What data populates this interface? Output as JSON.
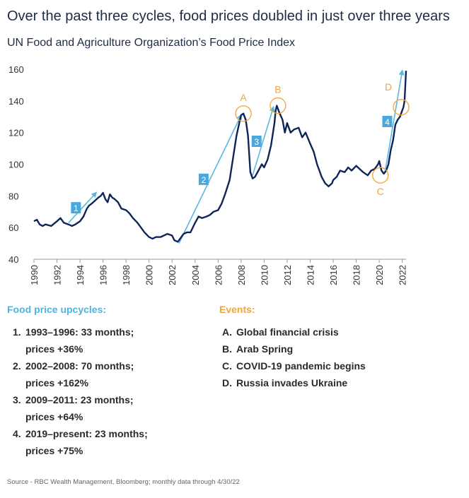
{
  "title": "Over the past three cycles, food prices doubled in just over three years",
  "subtitle": "UN Food and Agriculture Organization’s Food Price Index",
  "colors": {
    "line": "#0f2559",
    "arrow": "#5ab8e0",
    "box": "#4aa8dc",
    "event": "#f0a63c",
    "text": "#1f2a44"
  },
  "chart_data": {
    "type": "line",
    "ylim": [
      40,
      160
    ],
    "xlim": [
      1990,
      2022.33
    ],
    "y_ticks": [
      "40",
      "60",
      "80",
      "100",
      "120",
      "140",
      "160"
    ],
    "x_ticks": [
      "1990",
      "1992",
      "1994",
      "1996",
      "1998",
      "2000",
      "2002",
      "2004",
      "2006",
      "2008",
      "2010",
      "2012",
      "2014",
      "2016",
      "2018",
      "2020",
      "2022"
    ],
    "grid": false,
    "series": [
      {
        "x": [
          1990.0,
          1990.25,
          1990.5,
          1990.75,
          1991.0,
          1991.5,
          1992.0,
          1992.3,
          1992.6,
          1993.0,
          1993.3,
          1993.6,
          1993.8,
          1994.0,
          1994.3,
          1994.6,
          1994.8,
          1995.0,
          1995.3,
          1995.6,
          1995.8,
          1996.0,
          1996.2,
          1996.4,
          1996.6,
          1996.8,
          1997.0,
          1997.3,
          1997.6,
          1998.0,
          1998.3,
          1998.6,
          1999.0,
          1999.3,
          1999.6,
          2000.0,
          2000.3,
          2000.6,
          2001.0,
          2001.3,
          2001.6,
          2002.0,
          2002.2,
          2002.5,
          2002.8,
          2003.0,
          2003.3,
          2003.6,
          2004.0,
          2004.3,
          2004.6,
          2005.0,
          2005.3,
          2005.6,
          2006.0,
          2006.3,
          2006.6,
          2007.0,
          2007.3,
          2007.6,
          2007.9,
          2008.0,
          2008.2,
          2008.4,
          2008.6,
          2008.8,
          2009.0,
          2009.2,
          2009.5,
          2009.8,
          2010.0,
          2010.3,
          2010.6,
          2010.9,
          2011.0,
          2011.1,
          2011.3,
          2011.6,
          2011.8,
          2012.0,
          2012.3,
          2012.6,
          2013.0,
          2013.3,
          2013.6,
          2014.0,
          2014.3,
          2014.6,
          2015.0,
          2015.3,
          2015.6,
          2015.9,
          2016.0,
          2016.3,
          2016.6,
          2017.0,
          2017.3,
          2017.6,
          2018.0,
          2018.3,
          2018.6,
          2019.0,
          2019.3,
          2019.6,
          2019.9,
          2020.0,
          2020.2,
          2020.4,
          2020.6,
          2020.8,
          2021.0,
          2021.2,
          2021.4,
          2021.6,
          2021.8,
          2022.0,
          2022.1,
          2022.2,
          2022.33
        ],
        "y": [
          64,
          65,
          62,
          61,
          62,
          61,
          64,
          66,
          63,
          62,
          61,
          62,
          63,
          64,
          67,
          72,
          74,
          75,
          77,
          79,
          80,
          82,
          78,
          76,
          81,
          79,
          78,
          76,
          72,
          71,
          69,
          66,
          63,
          60,
          57,
          54,
          53,
          54,
          54,
          55,
          56,
          55,
          52,
          51,
          54,
          56,
          57,
          57,
          63,
          67,
          66,
          67,
          68,
          70,
          71,
          75,
          81,
          90,
          104,
          118,
          128,
          131,
          132,
          128,
          118,
          95,
          91,
          92,
          96,
          100,
          98,
          103,
          112,
          126,
          134,
          137,
          133,
          128,
          120,
          126,
          120,
          122,
          123,
          117,
          120,
          113,
          108,
          100,
          92,
          88,
          86,
          88,
          90,
          92,
          96,
          95,
          98,
          96,
          99,
          97,
          95,
          93,
          96,
          97,
          100,
          102,
          96,
          94,
          96,
          100,
          109,
          115,
          125,
          128,
          130,
          134,
          136,
          140,
          159
        ]
      }
    ],
    "cycles": [
      {
        "box": "1",
        "from": [
          1993.0,
          63
        ],
        "to": [
          1995.4,
          82
        ]
      },
      {
        "box": "2",
        "from": [
          2002.6,
          50
        ],
        "to": [
          2008.0,
          131
        ]
      },
      {
        "box": "3",
        "from": [
          2009.0,
          93
        ],
        "to": [
          2010.8,
          136
        ]
      },
      {
        "box": "4",
        "from": [
          2020.5,
          95
        ],
        "to": [
          2022.0,
          159
        ]
      }
    ],
    "events": [
      {
        "label": "A",
        "x": 2008.2,
        "y": 132,
        "label_pos": "above"
      },
      {
        "label": "B",
        "x": 2011.2,
        "y": 137,
        "label_pos": "above"
      },
      {
        "label": "C",
        "x": 2020.1,
        "y": 93,
        "label_pos": "below"
      },
      {
        "label": "D",
        "x": 2021.9,
        "y": 136,
        "label_pos": "above-left"
      }
    ]
  },
  "upcycles": {
    "heading": "Food price upcycles:",
    "items": [
      {
        "num": "1.",
        "line1": "1993–1996: 33 months;",
        "line2": "prices +36%"
      },
      {
        "num": "2.",
        "line1": "2002–2008: 70 months;",
        "line2": "prices +162%"
      },
      {
        "num": "3.",
        "line1": "2009–2011: 23 months;",
        "line2": "prices +64%"
      },
      {
        "num": "4.",
        "line1": "2019–present: 23 months;",
        "line2": "prices +75%"
      }
    ]
  },
  "events_list": {
    "heading": "Events:",
    "items": [
      {
        "num": "A.",
        "text": "Global financial crisis"
      },
      {
        "num": "B.",
        "text": "Arab Spring"
      },
      {
        "num": "C.",
        "text": "COVID-19 pandemic begins"
      },
      {
        "num": "D.",
        "text": "Russia invades Ukraine"
      }
    ]
  },
  "source": "Source - RBC Wealth Management, Bloomberg; monthly data through 4/30/22"
}
